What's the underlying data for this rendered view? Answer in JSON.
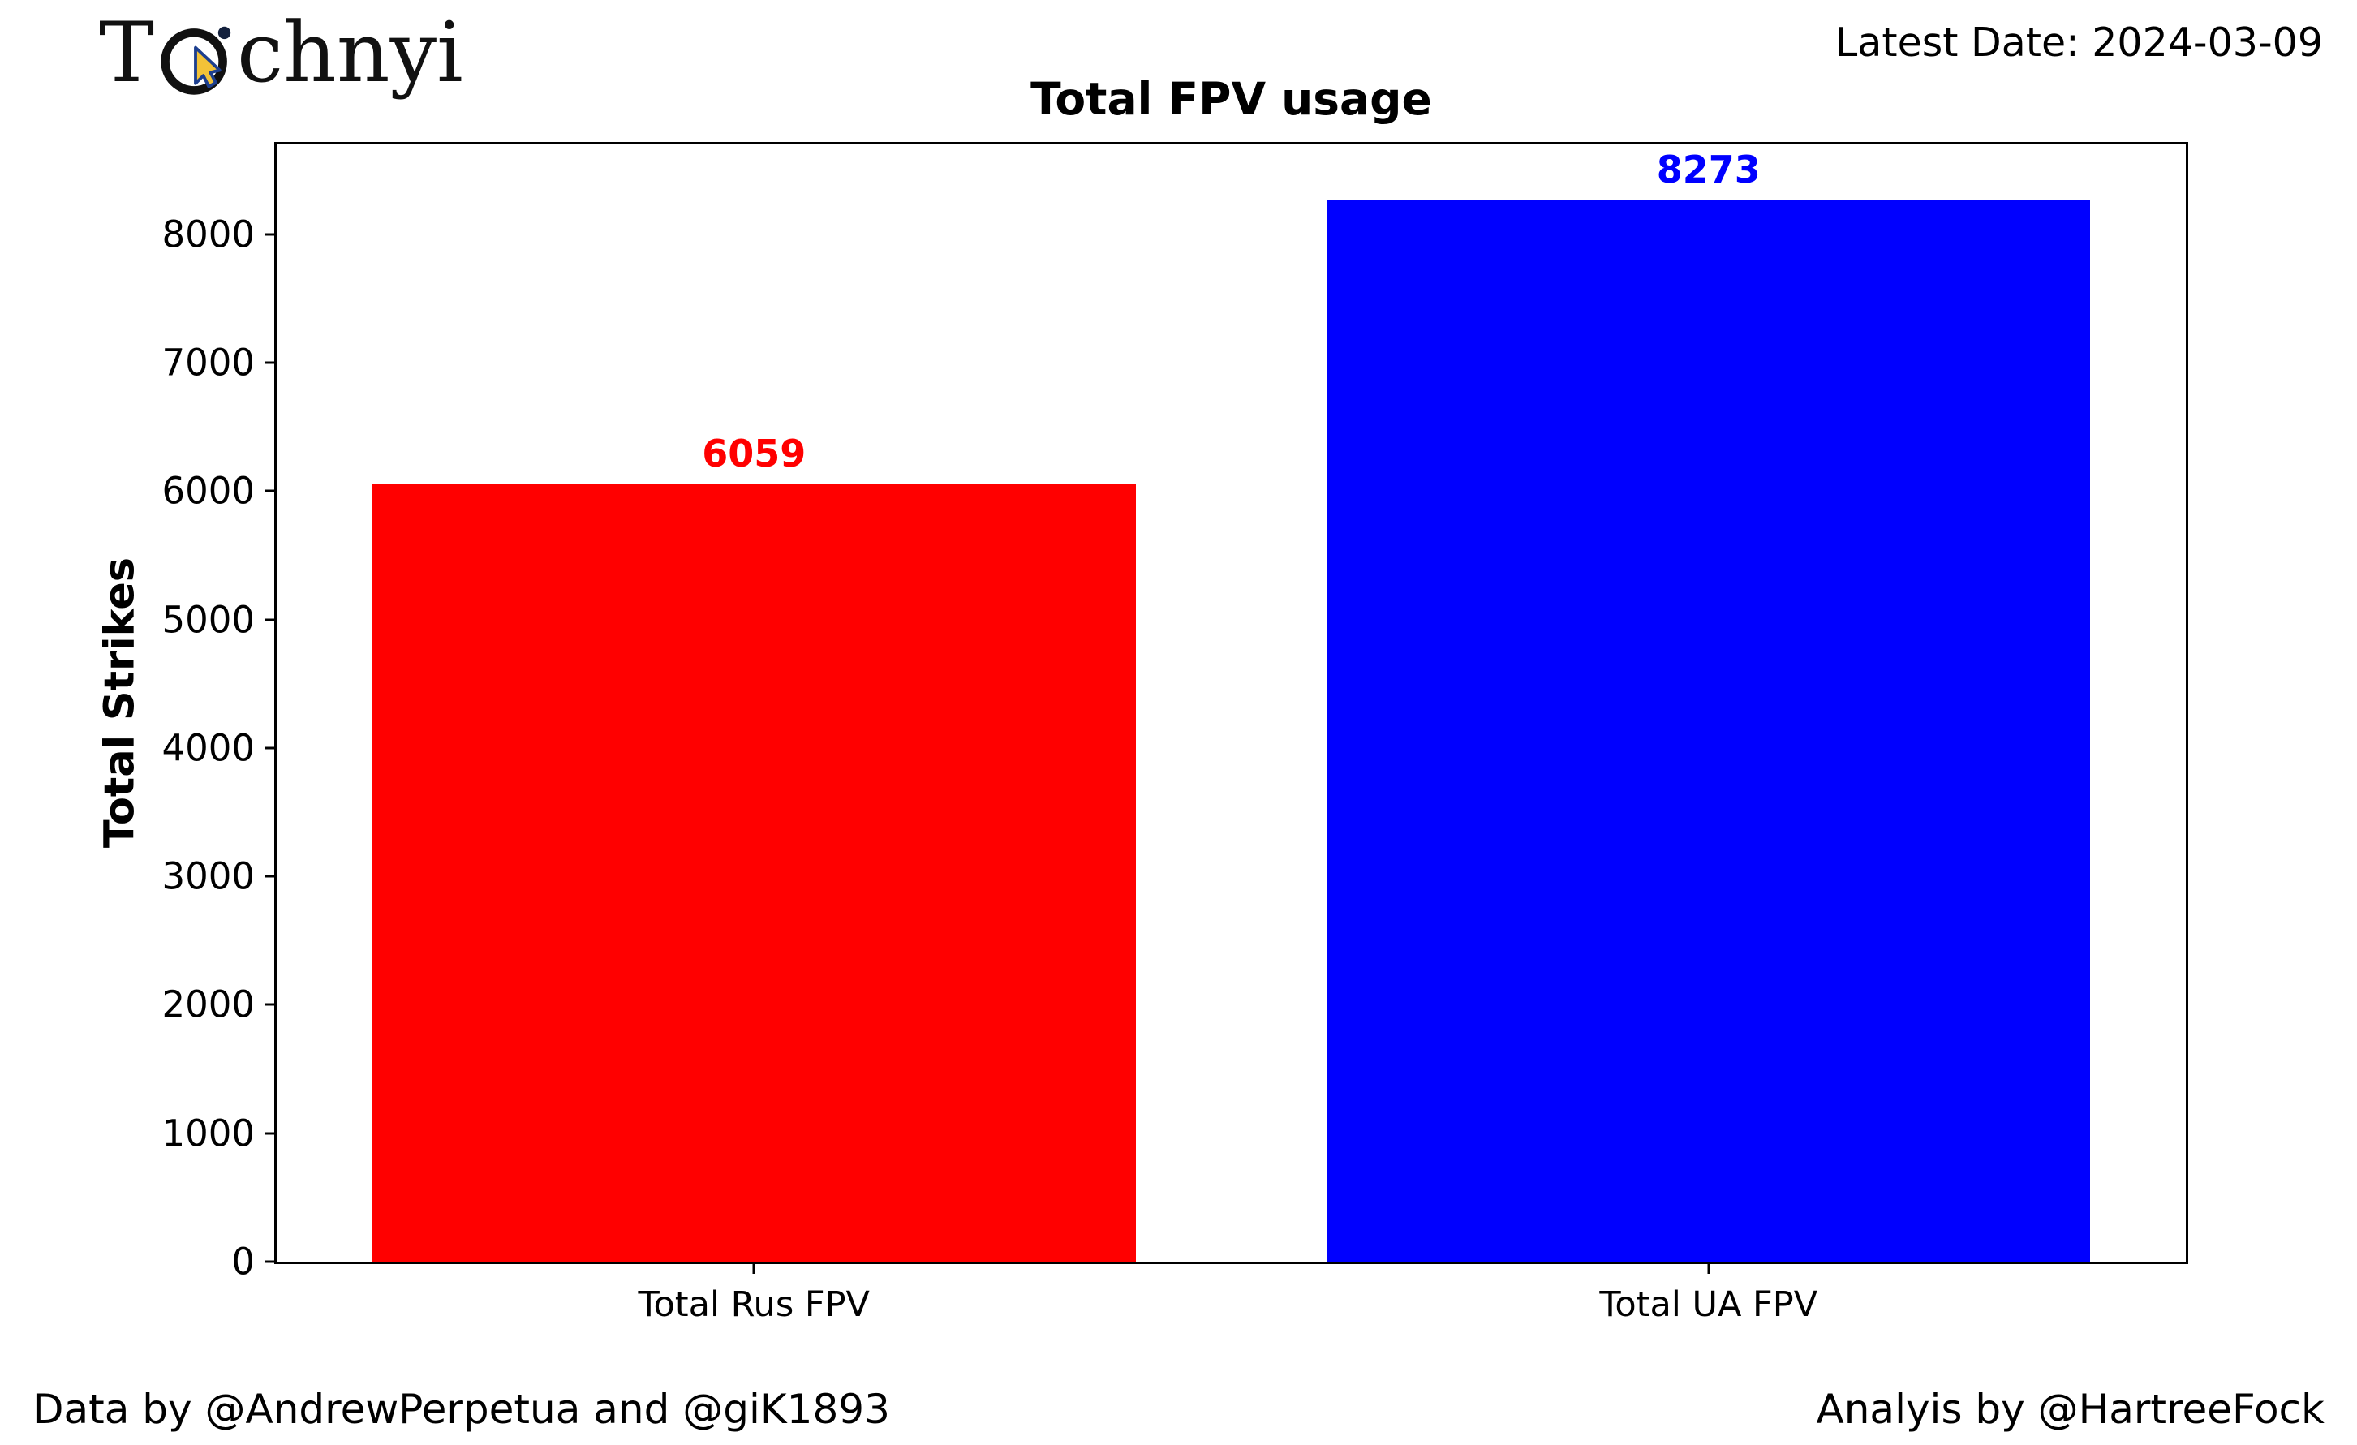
{
  "header": {
    "logo_text_pre": "T",
    "logo_text_post": "chnyi",
    "latest_date": "Latest Date: 2024-03-09"
  },
  "footer": {
    "left": "Data by @AndrewPerpetua and @giK1893",
    "right": "Analyis by @HartreeFock"
  },
  "chart_data": {
    "type": "bar",
    "title": "Total FPV usage",
    "xlabel": "",
    "ylabel": "Total Strikes",
    "categories": [
      "Total Rus FPV",
      "Total UA FPV"
    ],
    "values": [
      6059,
      8273
    ],
    "bar_colors": [
      "#ff0000",
      "#0000ff"
    ],
    "label_colors": [
      "#ff0000",
      "#0000ff"
    ],
    "ylim": [
      0,
      8700
    ],
    "yticks": [
      0,
      1000,
      2000,
      3000,
      4000,
      5000,
      6000,
      7000,
      8000
    ],
    "grid": false,
    "legend_position": "none"
  }
}
